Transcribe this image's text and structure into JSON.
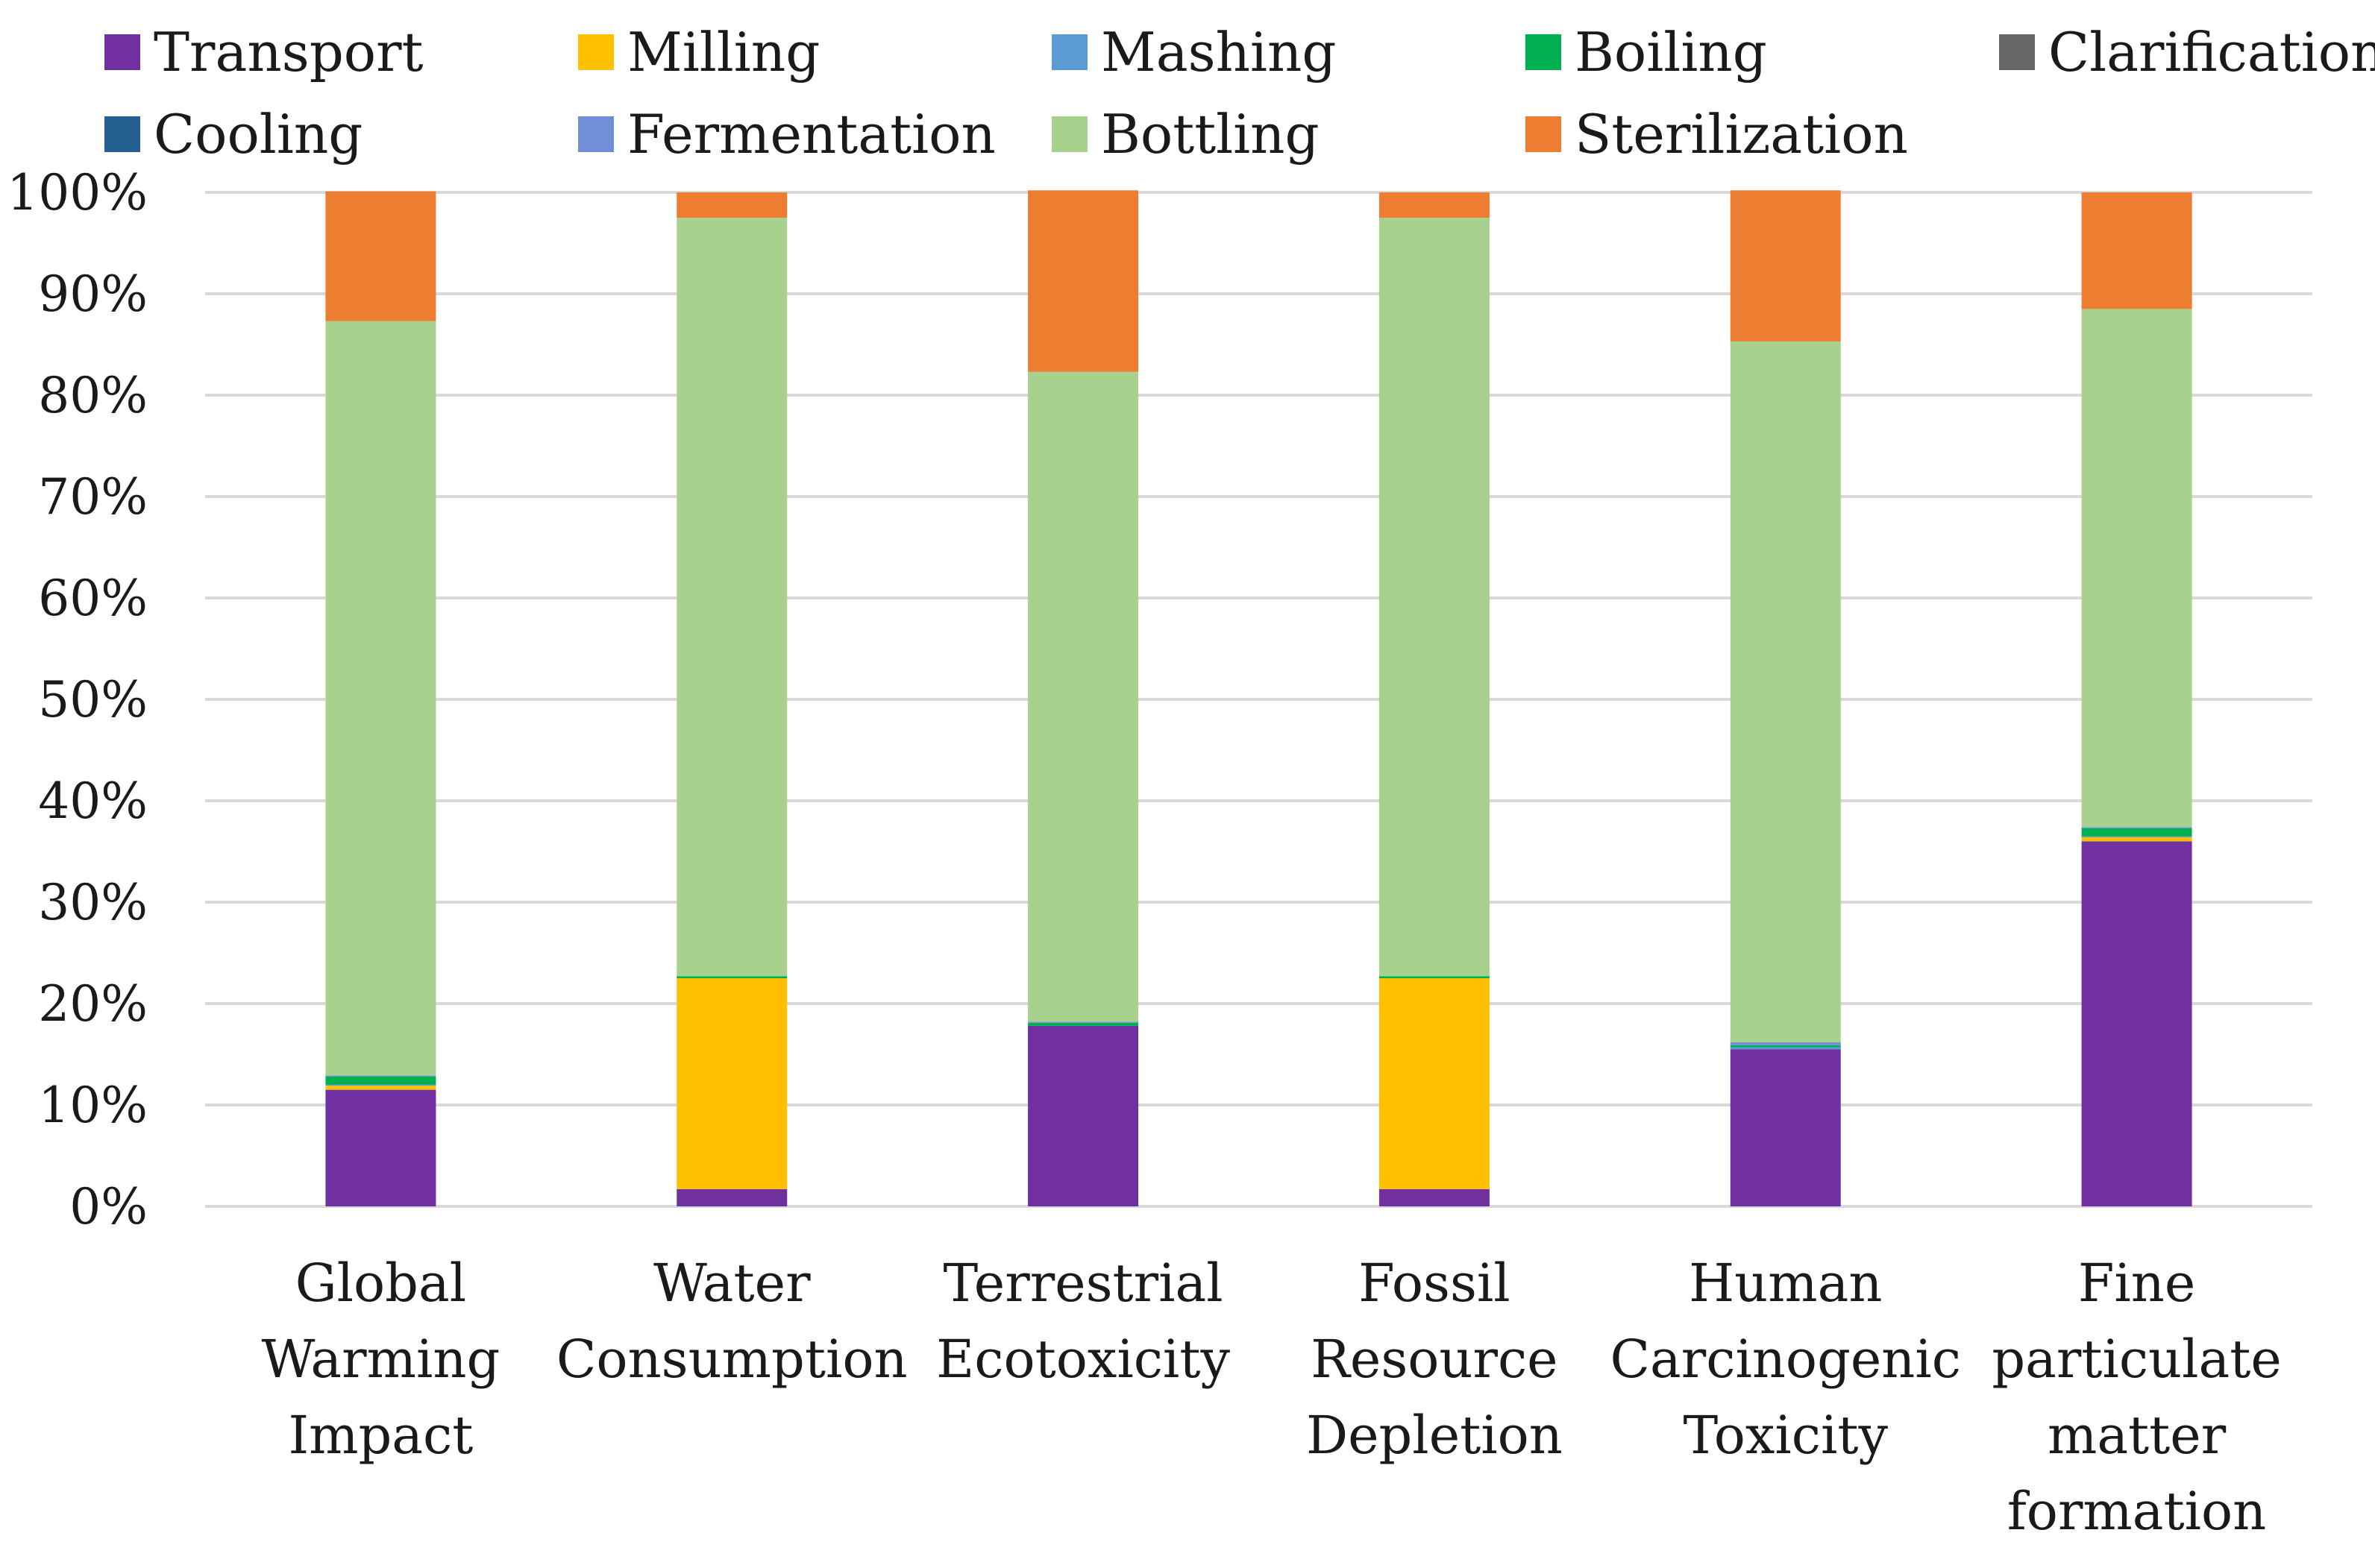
{
  "chart_data": {
    "type": "bar",
    "stacked": true,
    "percent_stacked": true,
    "title": "",
    "xlabel": "",
    "ylabel": "",
    "ylim": [
      0,
      100
    ],
    "y_ticks": [
      "0%",
      "10%",
      "20%",
      "30%",
      "40%",
      "50%",
      "60%",
      "70%",
      "80%",
      "90%",
      "100%"
    ],
    "grid": true,
    "legend_position": "top",
    "categories": [
      [
        "Global",
        "Warming",
        "Impact"
      ],
      [
        "Water",
        "Consumption"
      ],
      [
        "Terrestrial",
        "Ecotoxicity"
      ],
      [
        "Fossil",
        "Resource",
        "Depletion"
      ],
      [
        "Human",
        "Carcinogenic",
        "Toxicity"
      ],
      [
        "Fine",
        "particulate",
        "matter",
        "formation"
      ]
    ],
    "series": [
      {
        "name": "Transport",
        "color": "#7030A0",
        "values": [
          11.5,
          1.7,
          17.8,
          1.7,
          15.5,
          36.0
        ]
      },
      {
        "name": "Milling",
        "color": "#FFC000",
        "values": [
          0.4,
          20.8,
          0.0,
          20.8,
          0.0,
          0.4
        ]
      },
      {
        "name": "Mashing",
        "color": "#5B9BD5",
        "values": [
          0.1,
          0.0,
          0.0,
          0.0,
          0.2,
          0.1
        ]
      },
      {
        "name": "Boiling",
        "color": "#00B050",
        "values": [
          0.8,
          0.2,
          0.3,
          0.2,
          0.2,
          0.8
        ]
      },
      {
        "name": "Clarification",
        "color": "#666666",
        "values": [
          0.0,
          0.0,
          0.0,
          0.0,
          0.0,
          0.0
        ]
      },
      {
        "name": "Cooling",
        "color": "#255E91",
        "values": [
          0.0,
          0.0,
          0.0,
          0.0,
          0.0,
          0.0
        ]
      },
      {
        "name": "Fermentation",
        "color": "#6F8FD6",
        "values": [
          0.1,
          0.0,
          0.1,
          0.0,
          0.3,
          0.1
        ]
      },
      {
        "name": "Bottling",
        "color": "#A9D18E",
        "values": [
          74.4,
          74.8,
          64.1,
          74.8,
          69.1,
          51.1
        ]
      },
      {
        "name": "Sterilization",
        "color": "#ED7D31",
        "values": [
          12.8,
          2.5,
          17.9,
          2.5,
          14.9,
          11.5
        ]
      }
    ]
  }
}
